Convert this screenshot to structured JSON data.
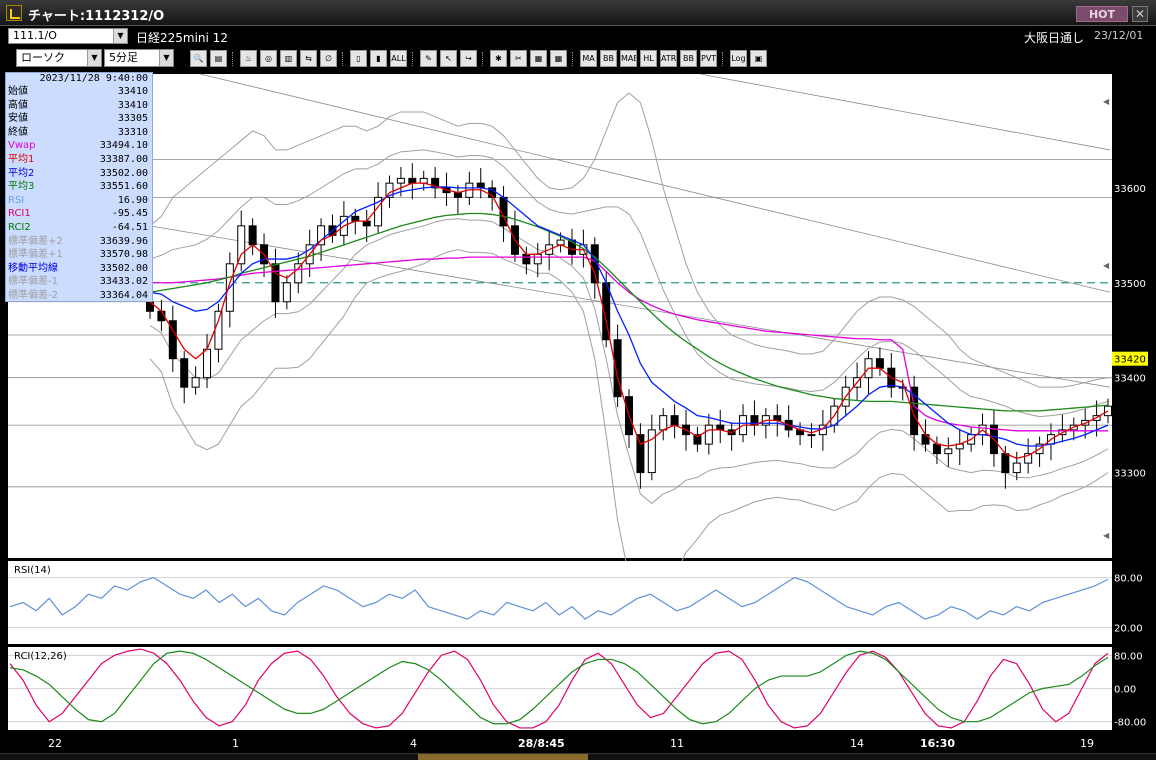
{
  "window": {
    "title": "チャート:1112312/O",
    "hot_label": "HOT",
    "close_glyph": "✕"
  },
  "symbol_bar": {
    "symbol": "111.1/O",
    "contract": "日経225mini 12",
    "exchange": "大阪日通し",
    "date": "23/12/01"
  },
  "toolbar": {
    "chart_type": "ローソク",
    "interval": "5分足",
    "buttons": [
      {
        "name": "zoom-icon",
        "text": "🔍"
      },
      {
        "name": "grid-icon",
        "text": "▤"
      },
      {
        "name": "order-icon",
        "text": "♨"
      },
      {
        "name": "analysis-icon",
        "text": "◎"
      },
      {
        "name": "ticks-icon",
        "text": "▥"
      },
      {
        "name": "compare-icon",
        "text": "⇆"
      },
      {
        "name": "disabled-icon",
        "text": "∅"
      },
      {
        "name": "candle-icon",
        "text": "▯"
      },
      {
        "name": "candle2-icon",
        "text": "▮"
      },
      {
        "name": "all-icon",
        "text": "ALL"
      },
      {
        "name": "pen-icon",
        "text": "✎"
      },
      {
        "name": "cursor-icon",
        "text": "↖"
      },
      {
        "name": "redo-icon",
        "text": "↪"
      },
      {
        "name": "settings-icon",
        "text": "✱"
      },
      {
        "name": "tool-icon",
        "text": "✂"
      },
      {
        "name": "color-icon",
        "text": "▦"
      },
      {
        "name": "indicator-icon",
        "text": "▦"
      },
      {
        "name": "ma-icon",
        "text": "MA"
      },
      {
        "name": "bb-icon",
        "text": "BB"
      },
      {
        "name": "mae-icon",
        "text": "MAE"
      },
      {
        "name": "hl-icon",
        "text": "HL"
      },
      {
        "name": "atr-icon",
        "text": "ATR"
      },
      {
        "name": "bb2-icon",
        "text": "BB"
      },
      {
        "name": "pvt-icon",
        "text": "PVT"
      },
      {
        "name": "log-icon",
        "text": "Log"
      },
      {
        "name": "export-icon",
        "text": "▣"
      }
    ]
  },
  "info_panel": {
    "time": "2023/11/28 9:40:00",
    "rows": [
      {
        "label": "始値",
        "value": "33410",
        "color": "#000000"
      },
      {
        "label": "高値",
        "value": "33410",
        "color": "#000000"
      },
      {
        "label": "安値",
        "value": "33305",
        "color": "#000000"
      },
      {
        "label": "終値",
        "value": "33310",
        "color": "#000000"
      },
      {
        "label": "Vwap",
        "value": "33494.10",
        "color": "#e000e0"
      },
      {
        "label": "平均1",
        "value": "33387.00",
        "color": "#e00000"
      },
      {
        "label": "平均2",
        "value": "33502.00",
        "color": "#0000e0"
      },
      {
        "label": "平均3",
        "value": "33551.60",
        "color": "#007a00"
      },
      {
        "label": "RSI",
        "value": "16.90",
        "color": "#6aa0e0"
      },
      {
        "label": "RCI1",
        "value": "-95.45",
        "color": "#e0006a"
      },
      {
        "label": "RCI2",
        "value": "-64.51",
        "color": "#007a00"
      },
      {
        "label": "標準偏差+2",
        "value": "33639.96",
        "color": "#a0a0a0"
      },
      {
        "label": "標準偏差+1",
        "value": "33570.98",
        "color": "#a0a0a0"
      },
      {
        "label": "移動平均線",
        "value": "33502.00",
        "color": "#0000e0"
      },
      {
        "label": "標準偏差-1",
        "value": "33433.02",
        "color": "#a0a0a0"
      },
      {
        "label": "標準偏差-2",
        "value": "33364.04",
        "color": "#a0a0a0"
      }
    ]
  },
  "chart_data": [
    {
      "type": "line",
      "panel": "price",
      "y_ticks": [
        "33600",
        "33500",
        "33400",
        "33300"
      ],
      "ylim": [
        33210,
        33720
      ],
      "current_price": "33420",
      "ref_price": 33500,
      "h_levels": [
        33630,
        33590,
        33480,
        33445,
        33400,
        33350,
        33285
      ],
      "close": [
        33470,
        33460,
        33420,
        33390,
        33400,
        33430,
        33470,
        33520,
        33560,
        33540,
        33520,
        33480,
        33500,
        33520,
        33540,
        33560,
        33550,
        33570,
        33565,
        33560,
        33590,
        33605,
        33610,
        33605,
        33610,
        33600,
        33595,
        33590,
        33605,
        33600,
        33590,
        33560,
        33530,
        33520,
        33530,
        33540,
        33545,
        33530,
        33540,
        33500,
        33440,
        33380,
        33340,
        33300,
        33345,
        33360,
        33350,
        33340,
        33330,
        33350,
        33345,
        33340,
        33360,
        33350,
        33360,
        33355,
        33345,
        33340,
        33340,
        33350,
        33370,
        33390,
        33400,
        33420,
        33410,
        33390,
        33390,
        33340,
        33330,
        33320,
        33325,
        33330,
        33340,
        33350,
        33320,
        33300,
        33310,
        33320,
        33330,
        33340,
        33345,
        33350,
        33355,
        33360,
        33370
      ],
      "ma_short": [
        33480,
        33470,
        33450,
        33430,
        33420,
        33430,
        33460,
        33500,
        33530,
        33540,
        33530,
        33510,
        33505,
        33515,
        33530,
        33545,
        33550,
        33560,
        33565,
        33565,
        33580,
        33595,
        33600,
        33605,
        33605,
        33602,
        33598,
        33595,
        33598,
        33598,
        33592,
        33570,
        33545,
        33530,
        33530,
        33535,
        33540,
        33535,
        33535,
        33510,
        33460,
        33400,
        33360,
        33330,
        33335,
        33345,
        33350,
        33345,
        33338,
        33345,
        33345,
        33342,
        33350,
        33350,
        33355,
        33355,
        33350,
        33345,
        33342,
        33346,
        33360,
        33380,
        33395,
        33410,
        33410,
        33400,
        33395,
        33360,
        33340,
        33330,
        33328,
        33330,
        33335,
        33345,
        33335,
        33320,
        33315,
        33318,
        33325,
        33335,
        33342,
        33348,
        33352,
        33358,
        33365
      ],
      "ma_mid": [
        33490,
        33488,
        33480,
        33475,
        33470,
        33472,
        33480,
        33495,
        33510,
        33520,
        33525,
        33525,
        33525,
        33528,
        33535,
        33545,
        33555,
        33565,
        33575,
        33580,
        33585,
        33592,
        33596,
        33598,
        33600,
        33601,
        33601,
        33600,
        33600,
        33600,
        33598,
        33590,
        33580,
        33570,
        33560,
        33555,
        33550,
        33545,
        33540,
        33525,
        33500,
        33470,
        33445,
        33415,
        33395,
        33385,
        33375,
        33368,
        33360,
        33358,
        33355,
        33352,
        33352,
        33352,
        33352,
        33352,
        33350,
        33348,
        33346,
        33346,
        33350,
        33360,
        33370,
        33382,
        33390,
        33392,
        33390,
        33382,
        33372,
        33362,
        33352,
        33345,
        33340,
        33340,
        33338,
        33335,
        33330,
        33328,
        33328,
        33330,
        33333,
        33336,
        33340,
        33345,
        33350
      ],
      "ma_long": [
        33490,
        33492,
        33494,
        33496,
        33498,
        33500,
        33503,
        33506,
        33510,
        33513,
        33516,
        33519,
        33522,
        33525,
        33528,
        33532,
        33536,
        33540,
        33544,
        33548,
        33552,
        33556,
        33560,
        33563,
        33566,
        33569,
        33571,
        33572,
        33573,
        33573,
        33572,
        33570,
        33567,
        33563,
        33559,
        33554,
        33549,
        33543,
        33536,
        33527,
        33516,
        33504,
        33492,
        33480,
        33468,
        33457,
        33447,
        33438,
        33430,
        33422,
        33415,
        33409,
        33404,
        33399,
        33395,
        33391,
        33388,
        33385,
        33382,
        33380,
        33378,
        33377,
        33376,
        33375,
        33375,
        33375,
        33374,
        33373,
        33372,
        33371,
        33370,
        33369,
        33368,
        33367,
        33366,
        33365,
        33365,
        33365,
        33365,
        33366,
        33367,
        33368,
        33369,
        33370,
        33371
      ],
      "vwap": [
        33500,
        33500,
        33500,
        33501,
        33502,
        33503,
        33504,
        33506,
        33508,
        33510,
        33511,
        33512,
        33513,
        33514,
        33515,
        33516,
        33517,
        33518,
        33519,
        33520,
        33521,
        33522,
        33523,
        33524,
        33525,
        33525,
        33526,
        33526,
        33527,
        33527,
        33527,
        33527,
        33527,
        33527,
        33527,
        33527,
        33527,
        33527,
        33527,
        33523,
        33512,
        33500,
        33490,
        33482,
        33476,
        33471,
        33467,
        33464,
        33461,
        33459,
        33457,
        33455,
        33453,
        33451,
        33449,
        33448,
        33447,
        33446,
        33445,
        33444,
        33443,
        33442,
        33441,
        33441,
        33440,
        33440,
        33430,
        33370,
        33360,
        33355,
        33352,
        33350,
        33348,
        33347,
        33346,
        33345,
        33344,
        33344,
        33344,
        33344,
        33344,
        33344,
        33344,
        33344,
        33344
      ],
      "bb_upper2": [
        33560,
        33570,
        33590,
        33600,
        33610,
        33620,
        33630,
        33640,
        33650,
        33660,
        33655,
        33640,
        33640,
        33645,
        33650,
        33655,
        33660,
        33665,
        33665,
        33660,
        33665,
        33675,
        33680,
        33680,
        33680,
        33675,
        33670,
        33665,
        33668,
        33668,
        33665,
        33655,
        33640,
        33625,
        33610,
        33600,
        33598,
        33600,
        33610,
        33630,
        33660,
        33690,
        33700,
        33690,
        33650,
        33600,
        33560,
        33520,
        33490,
        33470,
        33455,
        33445,
        33440,
        33435,
        33432,
        33430,
        33428,
        33425,
        33425,
        33428,
        33440,
        33455,
        33470,
        33480,
        33485,
        33485,
        33482,
        33475,
        33465,
        33455,
        33445,
        33430,
        33420,
        33415,
        33410,
        33405,
        33400,
        33395,
        33390,
        33390,
        33390,
        33392,
        33395,
        33398,
        33400
      ]
    },
    {
      "type": "line",
      "panel": "rsi",
      "title": "RSI(14)",
      "y_ticks": [
        "80.00",
        "20.00"
      ],
      "ylim": [
        0,
        100
      ],
      "series": [
        {
          "color": "#5f8fdb",
          "values": [
            45,
            50,
            40,
            55,
            35,
            45,
            60,
            55,
            70,
            65,
            75,
            80,
            70,
            60,
            55,
            65,
            50,
            60,
            45,
            55,
            40,
            35,
            50,
            60,
            70,
            65,
            55,
            45,
            50,
            60,
            55,
            65,
            45,
            40,
            35,
            30,
            40,
            35,
            50,
            45,
            40,
            50,
            35,
            45,
            30,
            40,
            35,
            45,
            55,
            60,
            50,
            40,
            45,
            55,
            65,
            55,
            45,
            50,
            60,
            70,
            80,
            75,
            65,
            55,
            45,
            40,
            35,
            45,
            50,
            40,
            30,
            35,
            45,
            40,
            30,
            40,
            35,
            45,
            40,
            50,
            55,
            60,
            65,
            70,
            78
          ]
        }
      ]
    },
    {
      "type": "line",
      "panel": "rci",
      "title": "RCI(12,26)",
      "y_ticks": [
        "80.00",
        "0.00",
        "-80.00"
      ],
      "ylim": [
        -100,
        100
      ],
      "series": [
        {
          "color": "#e0006a",
          "values": [
            60,
            20,
            -40,
            -80,
            -60,
            -20,
            20,
            60,
            80,
            90,
            95,
            85,
            60,
            20,
            -30,
            -70,
            -90,
            -80,
            -40,
            20,
            60,
            85,
            90,
            70,
            30,
            -20,
            -60,
            -85,
            -95,
            -90,
            -60,
            -10,
            40,
            80,
            90,
            70,
            20,
            -40,
            -80,
            -95,
            -95,
            -80,
            -40,
            20,
            70,
            85,
            60,
            10,
            -40,
            -70,
            -60,
            -20,
            20,
            60,
            85,
            90,
            70,
            20,
            -40,
            -80,
            -95,
            -90,
            -60,
            -10,
            40,
            80,
            90,
            75,
            40,
            -10,
            -60,
            -90,
            -95,
            -80,
            -30,
            30,
            70,
            60,
            10,
            -50,
            -80,
            -60,
            0,
            60,
            85
          ]
        },
        {
          "color": "#1a8a1a",
          "values": [
            50,
            45,
            30,
            10,
            -20,
            -50,
            -75,
            -80,
            -60,
            -20,
            20,
            60,
            85,
            90,
            85,
            70,
            50,
            30,
            10,
            -10,
            -30,
            -50,
            -60,
            -60,
            -50,
            -30,
            -10,
            10,
            30,
            50,
            65,
            60,
            45,
            20,
            -10,
            -40,
            -70,
            -85,
            -85,
            -75,
            -50,
            -20,
            10,
            40,
            60,
            70,
            70,
            60,
            40,
            10,
            -20,
            -50,
            -75,
            -85,
            -80,
            -60,
            -30,
            0,
            20,
            30,
            30,
            30,
            40,
            60,
            80,
            90,
            85,
            70,
            40,
            10,
            -20,
            -50,
            -70,
            -80,
            -80,
            -70,
            -50,
            -30,
            -10,
            0,
            5,
            10,
            30,
            55,
            75
          ]
        }
      ]
    }
  ],
  "date_axis": {
    "labels": [
      {
        "text": "22",
        "bold": false
      },
      {
        "text": "1",
        "bold": false
      },
      {
        "text": "4",
        "bold": false
      },
      {
        "text": "28/8:45",
        "bold": true
      },
      {
        "text": "11",
        "bold": false
      },
      {
        "text": "14",
        "bold": false
      },
      {
        "text": "16:30",
        "bold": true
      },
      {
        "text": "19",
        "bold": false
      }
    ]
  },
  "colors": {
    "candle_up": "#ffffff",
    "candle_down": "#000000",
    "ma_short": "#e00000",
    "ma_mid": "#0020ff",
    "ma_long": "#1a8a1a",
    "vwap": "#e000e0",
    "bollinger": "#a0a0a0",
    "ref_line": "#2a9a8a",
    "current_price_bg": "#ffff00"
  }
}
